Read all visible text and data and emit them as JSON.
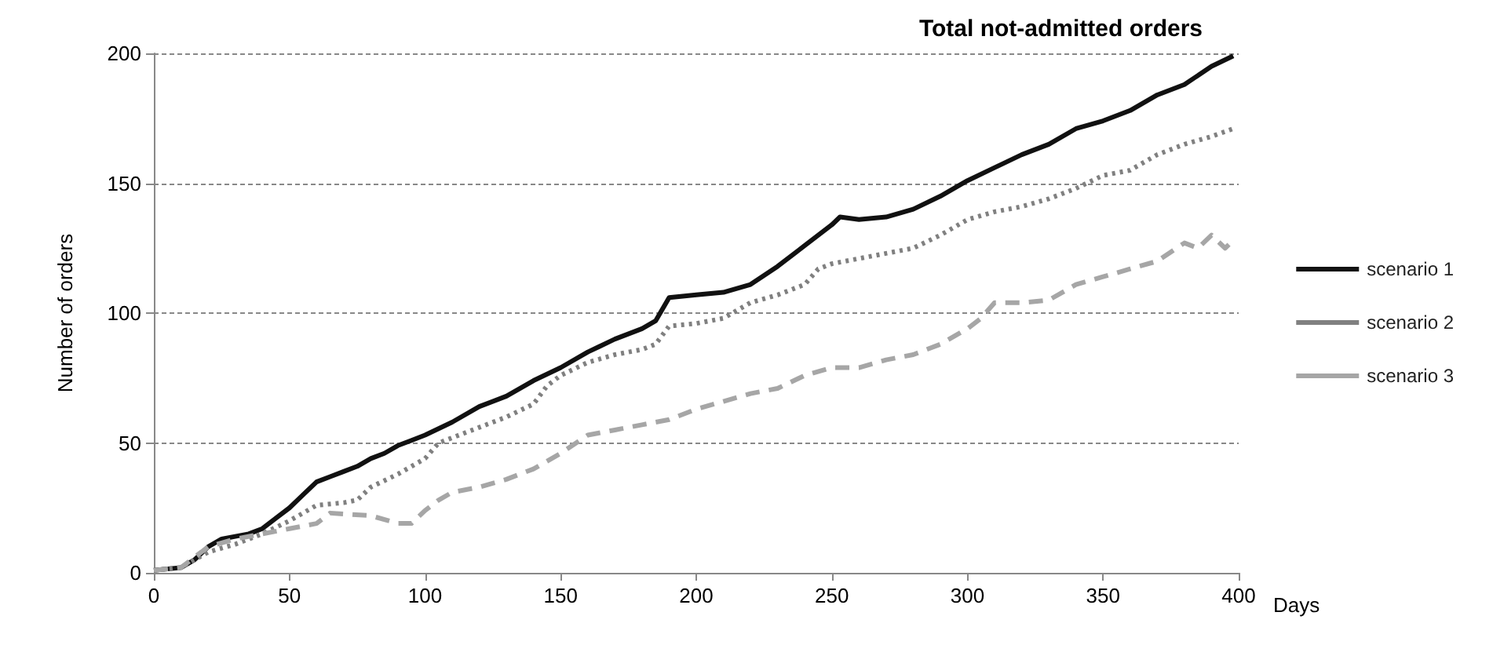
{
  "chart_data": {
    "type": "line",
    "title": "Total not-admitted orders",
    "xlabel": "Days",
    "ylabel": "Number of orders",
    "xlim": [
      0,
      400
    ],
    "xticks": [
      0,
      50,
      100,
      150,
      200,
      250,
      300,
      350,
      400
    ],
    "ylim": [
      0,
      200
    ],
    "yticks": [
      0,
      50,
      100,
      150,
      200
    ],
    "grid": "y",
    "legend": "right",
    "marker": "none",
    "series": [
      {
        "name": "scenario 1",
        "color": "#111111",
        "line_style": "solid",
        "x": [
          0,
          10,
          15,
          20,
          25,
          30,
          35,
          40,
          45,
          50,
          55,
          60,
          65,
          70,
          75,
          80,
          85,
          90,
          95,
          100,
          110,
          120,
          130,
          140,
          150,
          160,
          170,
          180,
          185,
          190,
          200,
          210,
          220,
          230,
          240,
          250,
          253,
          260,
          270,
          280,
          290,
          300,
          310,
          320,
          330,
          340,
          350,
          360,
          370,
          380,
          390,
          398
        ],
        "values": [
          1,
          2,
          5,
          10,
          13,
          14,
          15,
          17,
          21,
          25,
          30,
          35,
          37,
          39,
          41,
          44,
          46,
          49,
          51,
          53,
          58,
          64,
          68,
          74,
          79,
          85,
          90,
          94,
          97,
          106,
          107,
          108,
          111,
          118,
          126,
          134,
          137,
          136,
          137,
          140,
          145,
          151,
          156,
          161,
          165,
          171,
          174,
          178,
          184,
          188,
          195,
          199
        ]
      },
      {
        "name": "scenario 2",
        "color": "#808080",
        "line_style": "dotted",
        "x": [
          0,
          10,
          20,
          30,
          40,
          50,
          60,
          70,
          75,
          80,
          90,
          100,
          105,
          110,
          120,
          130,
          140,
          145,
          150,
          160,
          170,
          180,
          185,
          190,
          200,
          210,
          220,
          230,
          240,
          245,
          250,
          260,
          270,
          280,
          290,
          300,
          310,
          320,
          330,
          340,
          350,
          360,
          370,
          380,
          390,
          398
        ],
        "values": [
          1,
          2,
          8,
          11,
          15,
          20,
          26,
          27,
          28,
          33,
          38,
          44,
          50,
          52,
          56,
          60,
          65,
          72,
          76,
          81,
          84,
          86,
          88,
          95,
          96,
          98,
          104,
          107,
          111,
          117,
          119,
          121,
          123,
          125,
          130,
          136,
          139,
          141,
          144,
          148,
          153,
          155,
          161,
          165,
          168,
          171
        ]
      },
      {
        "name": "scenario 3",
        "color": "#a6a6a6",
        "line_style": "dashed",
        "x": [
          0,
          10,
          20,
          30,
          40,
          50,
          60,
          65,
          80,
          90,
          95,
          100,
          105,
          110,
          120,
          130,
          140,
          150,
          160,
          170,
          180,
          190,
          200,
          210,
          220,
          230,
          240,
          250,
          260,
          270,
          280,
          290,
          300,
          305,
          310,
          320,
          330,
          340,
          350,
          360,
          370,
          380,
          385,
          390,
          395,
          398
        ],
        "values": [
          1,
          2,
          10,
          13,
          15,
          17,
          19,
          23,
          22,
          19,
          19,
          24,
          28,
          31,
          33,
          36,
          40,
          46,
          53,
          55,
          57,
          59,
          63,
          66,
          69,
          71,
          76,
          79,
          79,
          82,
          84,
          88,
          94,
          98,
          104,
          104,
          105,
          111,
          114,
          117,
          120,
          127,
          125,
          130,
          125,
          128
        ]
      }
    ]
  }
}
